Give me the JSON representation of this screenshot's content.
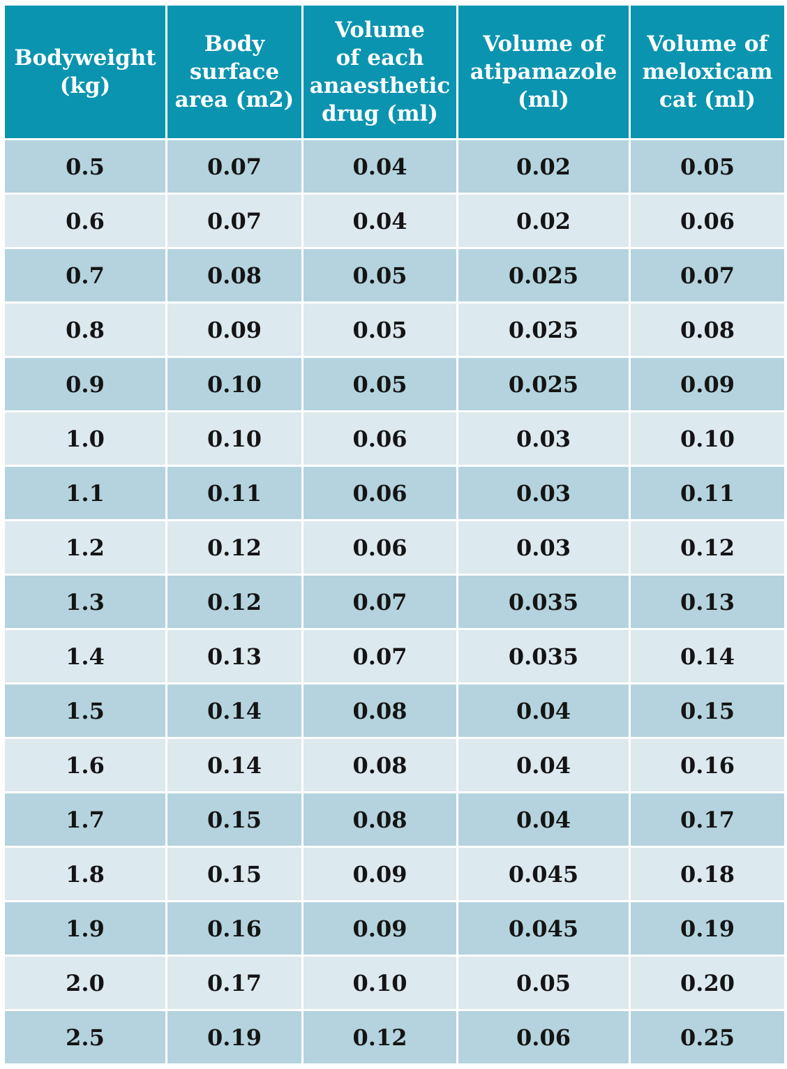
{
  "table": {
    "headers": [
      "Bodyweight\n(kg)",
      "Body\nsurface\narea (m2)",
      "Volume\nof each\nanaesthetic\ndrug (ml)",
      "Volume of\natipamazole\n(ml)",
      "Volume of\nmeloxicam\ncat (ml)"
    ],
    "rows": [
      [
        "0.5",
        "0.07",
        "0.04",
        "0.02",
        "0.05"
      ],
      [
        "0.6",
        "0.07",
        "0.04",
        "0.02",
        "0.06"
      ],
      [
        "0.7",
        "0.08",
        "0.05",
        "0.025",
        "0.07"
      ],
      [
        "0.8",
        "0.09",
        "0.05",
        "0.025",
        "0.08"
      ],
      [
        "0.9",
        "0.10",
        "0.05",
        "0.025",
        "0.09"
      ],
      [
        "1.0",
        "0.10",
        "0.06",
        "0.03",
        "0.10"
      ],
      [
        "1.1",
        "0.11",
        "0.06",
        "0.03",
        "0.11"
      ],
      [
        "1.2",
        "0.12",
        "0.06",
        "0.03",
        "0.12"
      ],
      [
        "1.3",
        "0.12",
        "0.07",
        "0.035",
        "0.13"
      ],
      [
        "1.4",
        "0.13",
        "0.07",
        "0.035",
        "0.14"
      ],
      [
        "1.5",
        "0.14",
        "0.08",
        "0.04",
        "0.15"
      ],
      [
        "1.6",
        "0.14",
        "0.08",
        "0.04",
        "0.16"
      ],
      [
        "1.7",
        "0.15",
        "0.08",
        "0.04",
        "0.17"
      ],
      [
        "1.8",
        "0.15",
        "0.09",
        "0.045",
        "0.18"
      ],
      [
        "1.9",
        "0.16",
        "0.09",
        "0.045",
        "0.19"
      ],
      [
        "2.0",
        "0.17",
        "0.10",
        "0.05",
        "0.20"
      ],
      [
        "2.5",
        "0.19",
        "0.12",
        "0.06",
        "0.25"
      ]
    ]
  },
  "colors": {
    "header_bg": "#0a94b0",
    "row_dark": "#b4d3de",
    "row_light": "#dce9ef"
  }
}
